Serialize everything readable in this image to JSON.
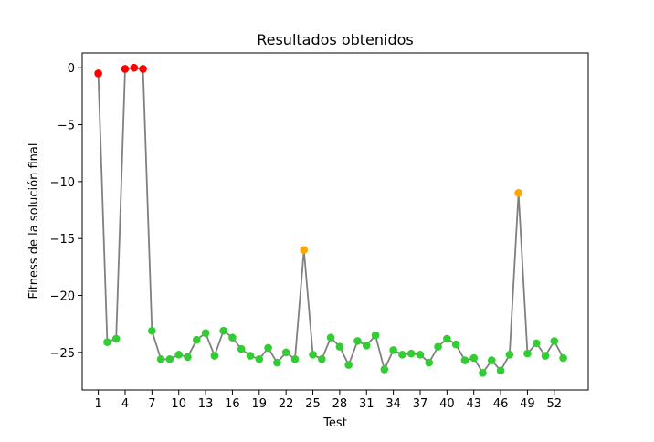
{
  "chart_data": {
    "type": "line",
    "title": "Resultados obtenidos",
    "xlabel": "Test",
    "ylabel": "Fitness de la solución final",
    "xlim": [
      -0.8,
      55.8
    ],
    "ylim": [
      -28.3,
      1.3
    ],
    "xticks": [
      1,
      4,
      7,
      10,
      13,
      16,
      19,
      22,
      25,
      28,
      31,
      34,
      37,
      40,
      43,
      46,
      49,
      52
    ],
    "yticks": [
      0,
      -5,
      -10,
      -15,
      -20,
      -25
    ],
    "grid": false,
    "line_color": "#808080",
    "x": [
      1,
      2,
      3,
      4,
      5,
      6,
      7,
      8,
      9,
      10,
      11,
      12,
      13,
      14,
      15,
      16,
      17,
      18,
      19,
      20,
      21,
      22,
      23,
      24,
      25,
      26,
      27,
      28,
      29,
      30,
      31,
      32,
      33,
      34,
      35,
      36,
      37,
      38,
      39,
      40,
      41,
      42,
      43,
      44,
      45,
      46,
      47,
      48,
      49,
      50,
      51,
      52,
      53
    ],
    "y": [
      -0.5,
      -24.1,
      -23.8,
      -0.1,
      0.0,
      -0.1,
      -23.1,
      -25.6,
      -25.6,
      -25.2,
      -25.4,
      -23.9,
      -23.3,
      -25.3,
      -23.1,
      -23.7,
      -24.7,
      -25.3,
      -25.6,
      -24.6,
      -25.9,
      -25.0,
      -25.6,
      -16.0,
      -25.2,
      -25.6,
      -23.7,
      -24.5,
      -26.1,
      -24.0,
      -24.4,
      -23.5,
      -26.5,
      -24.8,
      -25.2,
      -25.1,
      -25.2,
      -25.9,
      -24.5,
      -23.8,
      -24.3,
      -25.7,
      -25.5,
      -26.8,
      -25.7,
      -26.6,
      -25.2,
      -11.0,
      -25.1,
      -24.2,
      -25.3,
      -24.0,
      -25.5
    ],
    "point_colors": [
      "#ff0000",
      "#32cd32",
      "#32cd32",
      "#ff0000",
      "#ff0000",
      "#ff0000",
      "#32cd32",
      "#32cd32",
      "#32cd32",
      "#32cd32",
      "#32cd32",
      "#32cd32",
      "#32cd32",
      "#32cd32",
      "#32cd32",
      "#32cd32",
      "#32cd32",
      "#32cd32",
      "#32cd32",
      "#32cd32",
      "#32cd32",
      "#32cd32",
      "#32cd32",
      "#ffa500",
      "#32cd32",
      "#32cd32",
      "#32cd32",
      "#32cd32",
      "#32cd32",
      "#32cd32",
      "#32cd32",
      "#32cd32",
      "#32cd32",
      "#32cd32",
      "#32cd32",
      "#32cd32",
      "#32cd32",
      "#32cd32",
      "#32cd32",
      "#32cd32",
      "#32cd32",
      "#32cd32",
      "#32cd32",
      "#32cd32",
      "#32cd32",
      "#32cd32",
      "#32cd32",
      "#ffa500",
      "#32cd32",
      "#32cd32",
      "#32cd32",
      "#32cd32",
      "#32cd32"
    ]
  }
}
